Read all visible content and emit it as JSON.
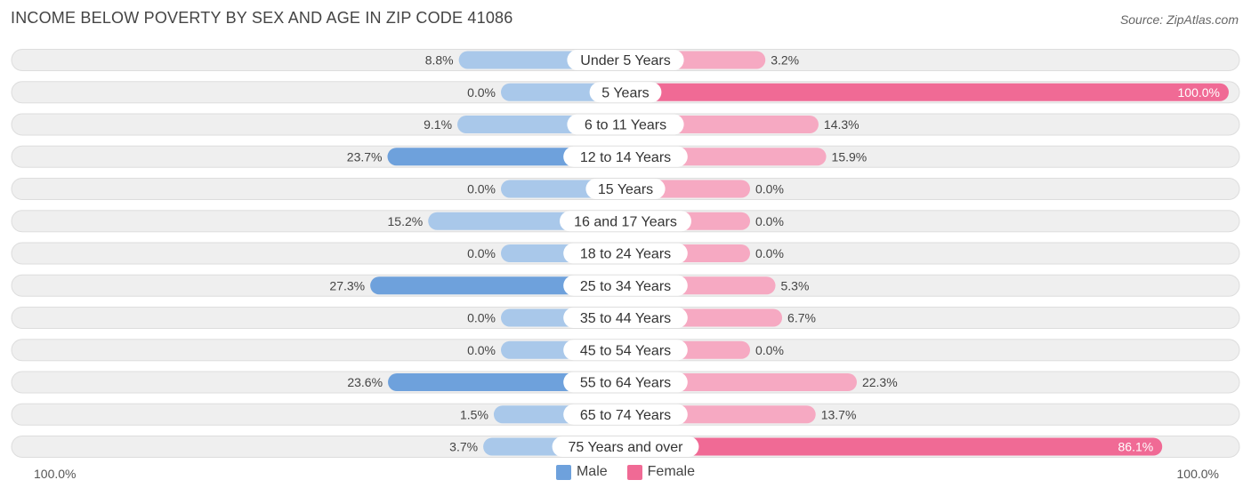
{
  "header": {
    "title": "INCOME BELOW POVERTY BY SEX AND AGE IN ZIP CODE 41086",
    "source": "Source: ZipAtlas.com"
  },
  "colors": {
    "male": "#6ea1dc",
    "male_light": "#a9c8ea",
    "female": "#f06a95",
    "female_light": "#f6a9c2",
    "row_bg": "#efefef",
    "row_border": "#dddddd"
  },
  "axis": {
    "left_label": "100.0%",
    "right_label": "100.0%"
  },
  "legend": {
    "male": "Male",
    "female": "Female"
  },
  "chart_data": {
    "type": "bar",
    "orientation": "horizontal-diverging",
    "title": "INCOME BELOW POVERTY BY SEX AND AGE IN ZIP CODE 41086",
    "categories": [
      "Under 5 Years",
      "5 Years",
      "6 to 11 Years",
      "12 to 14 Years",
      "15 Years",
      "16 and 17 Years",
      "18 to 24 Years",
      "25 to 34 Years",
      "35 to 44 Years",
      "45 to 54 Years",
      "55 to 64 Years",
      "65 to 74 Years",
      "75 Years and over"
    ],
    "series": [
      {
        "name": "Male",
        "values": [
          8.8,
          0.0,
          9.1,
          23.7,
          0.0,
          15.2,
          0.0,
          27.3,
          0.0,
          0.0,
          23.6,
          1.5,
          3.7
        ],
        "labels": [
          "8.8%",
          "0.0%",
          "9.1%",
          "23.7%",
          "0.0%",
          "15.2%",
          "0.0%",
          "27.3%",
          "0.0%",
          "0.0%",
          "23.6%",
          "1.5%",
          "3.7%"
        ]
      },
      {
        "name": "Female",
        "values": [
          3.2,
          100.0,
          14.3,
          15.9,
          0.0,
          0.0,
          0.0,
          5.3,
          6.7,
          0.0,
          22.3,
          13.7,
          86.1
        ],
        "labels": [
          "3.2%",
          "100.0%",
          "14.3%",
          "15.9%",
          "0.0%",
          "0.0%",
          "0.0%",
          "5.3%",
          "6.7%",
          "0.0%",
          "22.3%",
          "13.7%",
          "86.1%"
        ]
      }
    ],
    "xlim": [
      -100,
      100
    ],
    "legend_position": "bottom-center"
  }
}
